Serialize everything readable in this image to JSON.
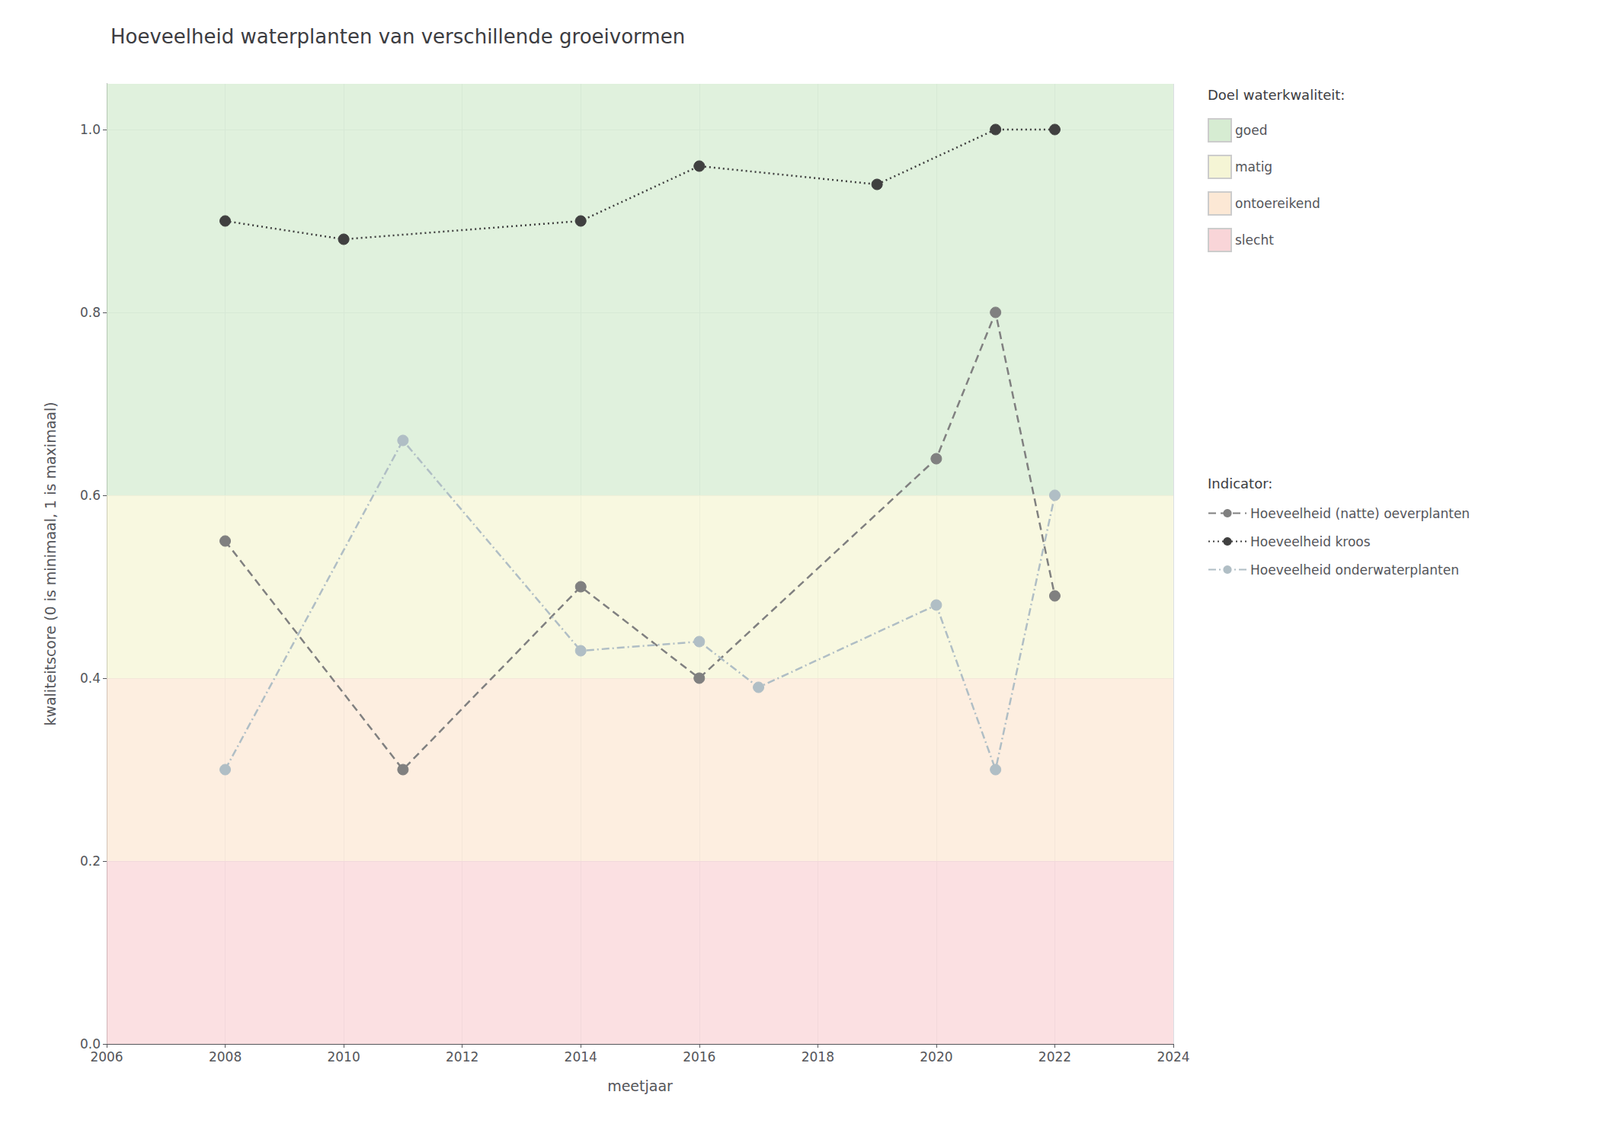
{
  "chart_data": {
    "type": "line",
    "title": "Hoeveelheid waterplanten van verschillende groeivormen",
    "xlabel": "meetjaar",
    "ylabel": "kwaliteitscore (0 is minimaal, 1 is maximaal)",
    "xlim": [
      2006,
      2024
    ],
    "ylim": [
      0.0,
      1.05
    ],
    "xticks": [
      2006,
      2008,
      2010,
      2012,
      2014,
      2016,
      2018,
      2020,
      2022,
      2024
    ],
    "yticks": [
      {
        "value": 0,
        "label": "0.0"
      },
      0.2,
      0.4,
      0.6,
      0.8,
      {
        "value": 1,
        "label": "1.0"
      }
    ],
    "grid": true,
    "legend": "right",
    "bands_title": "Doel waterkwaliteit:",
    "bands": [
      {
        "label": "goed",
        "from": 0.6,
        "to": 1.05,
        "color": "#d6ecd2"
      },
      {
        "label": "matig",
        "from": 0.4,
        "to": 0.6,
        "color": "#f5f5d5"
      },
      {
        "label": "ontoereikend",
        "from": 0.2,
        "to": 0.4,
        "color": "#fce8d5"
      },
      {
        "label": "slecht",
        "from": 0.0,
        "to": 0.2,
        "color": "#f9d5d8"
      }
    ],
    "legend_title": "Indicator:",
    "series": [
      {
        "name": "Hoeveelheid (natte) oeverplanten",
        "color": "#808080",
        "line_style": "dashed",
        "marker": "circle",
        "x": [
          2008,
          2011,
          2014,
          2016,
          2020,
          2021,
          2022
        ],
        "values": [
          0.55,
          0.3,
          0.5,
          0.4,
          0.64,
          0.8,
          0.49
        ]
      },
      {
        "name": "Hoeveelheid kroos",
        "color": "#404040",
        "line_style": "dotted",
        "marker": "circle",
        "x": [
          2008,
          2010,
          2014,
          2016,
          2019,
          2021,
          2022
        ],
        "values": [
          0.9,
          0.88,
          0.9,
          0.96,
          0.94,
          1.0,
          1.0
        ]
      },
      {
        "name": "Hoeveelheid onderwaterplanten",
        "color": "#b0bec5",
        "line_style": "dashdot",
        "marker": "circle",
        "x": [
          2008,
          2011,
          2014,
          2016,
          2017,
          2020,
          2021,
          2022
        ],
        "values": [
          0.3,
          0.66,
          0.43,
          0.44,
          0.39,
          0.48,
          0.3,
          0.6
        ]
      }
    ]
  }
}
